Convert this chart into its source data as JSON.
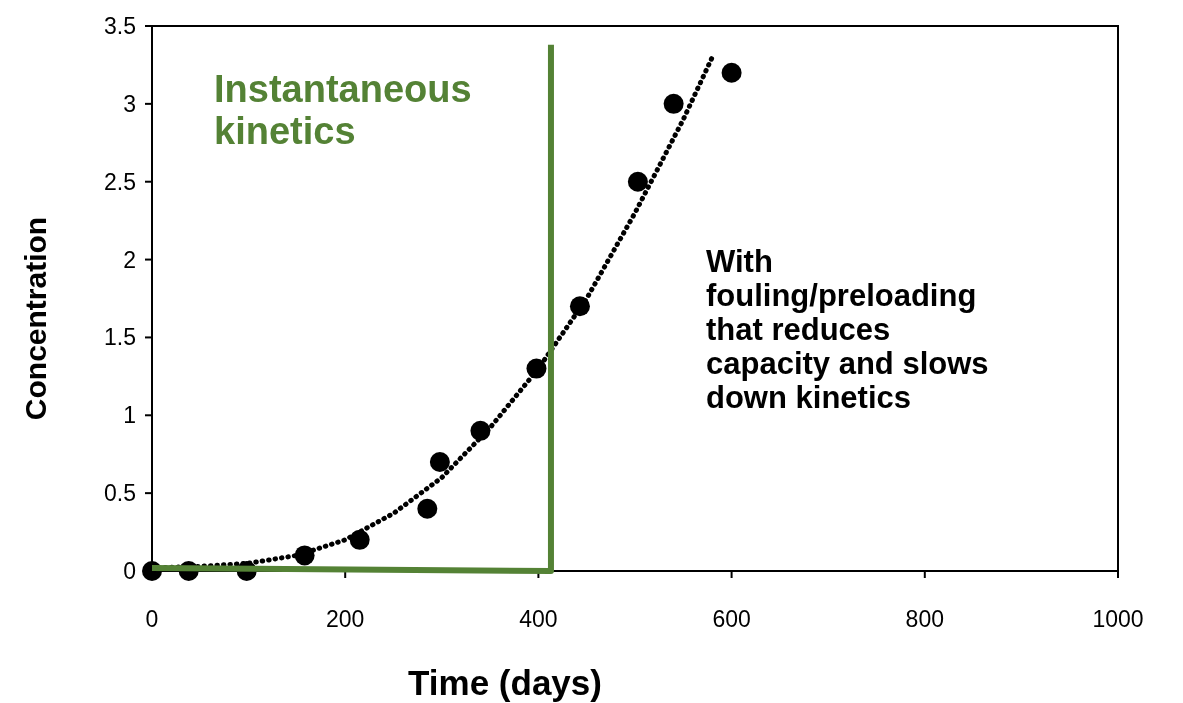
{
  "chart_data": {
    "type": "scatter",
    "xlabel": "Time (days)",
    "ylabel": "Concentration",
    "xlim": [
      0,
      1000
    ],
    "xticks": [
      0,
      200,
      400,
      600,
      800,
      1000
    ],
    "ylim": [
      0,
      3.5
    ],
    "yticks": [
      0,
      0.5,
      1,
      1.5,
      2,
      2.5,
      3,
      3.5
    ],
    "grid": false,
    "marker": "circle",
    "series": [
      {
        "type": "line",
        "color": "#000000",
        "line_style": "dotted",
        "marker": "none",
        "x": [
          0,
          50,
          100,
          150,
          200,
          250,
          300,
          350,
          400,
          450,
          500,
          550,
          580
        ],
        "values": [
          0.02,
          0.03,
          0.05,
          0.1,
          0.2,
          0.37,
          0.6,
          0.92,
          1.3,
          1.75,
          2.3,
          2.9,
          3.3
        ]
      },
      {
        "color": "#000000",
        "x": [
          0,
          38,
          98,
          158,
          215,
          285,
          298,
          340,
          398,
          443,
          503,
          540,
          600
        ],
        "values": [
          0,
          0,
          0,
          0.1,
          0.2,
          0.4,
          0.7,
          0.9,
          1.3,
          1.7,
          2.5,
          3.0,
          3.2
        ]
      },
      {
        "type": "line",
        "color": "#548235",
        "line_style": "solid",
        "marker": "none",
        "x": [
          0,
          413,
          413
        ],
        "values": [
          0.02,
          0,
          3.38
        ]
      }
    ],
    "annotations": [
      "Instantaneous\nkinetics",
      "With\nfouling/preloading\nthat reduces\ncapacity and slows\ndown kinetics"
    ]
  }
}
